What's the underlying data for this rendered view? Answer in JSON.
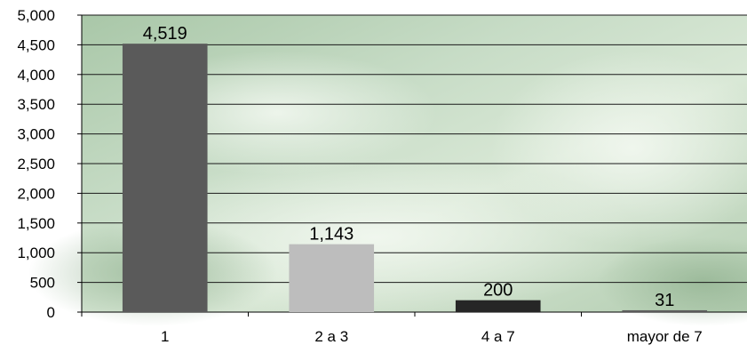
{
  "chart_data": {
    "type": "bar",
    "title": "",
    "xlabel": "",
    "ylabel": "",
    "categories": [
      "1",
      "2 a 3",
      "4 a 7",
      "mayor de 7"
    ],
    "values": [
      4519,
      1143,
      200,
      31
    ],
    "data_labels": [
      "4,519",
      "1,143",
      "200",
      "31"
    ],
    "y_ticks": [
      "0",
      "500",
      "1,000",
      "1,500",
      "2,000",
      "2,500",
      "3,000",
      "3,500",
      "4,000",
      "4,500",
      "5,000"
    ],
    "ylim": [
      0,
      5000
    ],
    "grid": true,
    "legend": "none",
    "colors": {
      "bar_fills": [
        "#5a5a5a",
        "#bdbdbd",
        "#262626",
        "#5c5c5c"
      ],
      "plot_background": "#b9d2b7",
      "gridline": "#1a1a1a",
      "axis": "#000000",
      "text": "#000000"
    }
  }
}
